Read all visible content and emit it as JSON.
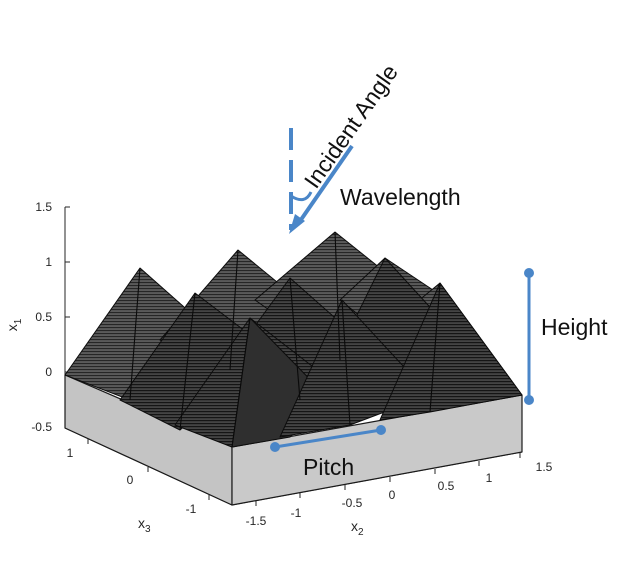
{
  "annotations": {
    "incident_angle": "Incident Angle",
    "wavelength": "Wavelength",
    "height": "Height",
    "pitch": "Pitch"
  },
  "axes": {
    "x1": {
      "label": "x",
      "sub": "1",
      "ticks": [
        "1.5",
        "1",
        "0.5",
        "0",
        "-0.5"
      ]
    },
    "x2": {
      "label": "x",
      "sub": "2",
      "ticks": [
        "-1.5",
        "-1",
        "-0.5",
        "0",
        "0.5",
        "1",
        "1.5"
      ]
    },
    "x3": {
      "label": "x",
      "sub": "3",
      "ticks": [
        "1",
        "0",
        "-1"
      ]
    }
  },
  "colors": {
    "accent": "#4a86c8",
    "pyramid": "#3a3a3a",
    "pyramid_dark": "#1f1f1f",
    "substrate_front": "#c8c8c8",
    "substrate_side": "#bdbdbd"
  }
}
